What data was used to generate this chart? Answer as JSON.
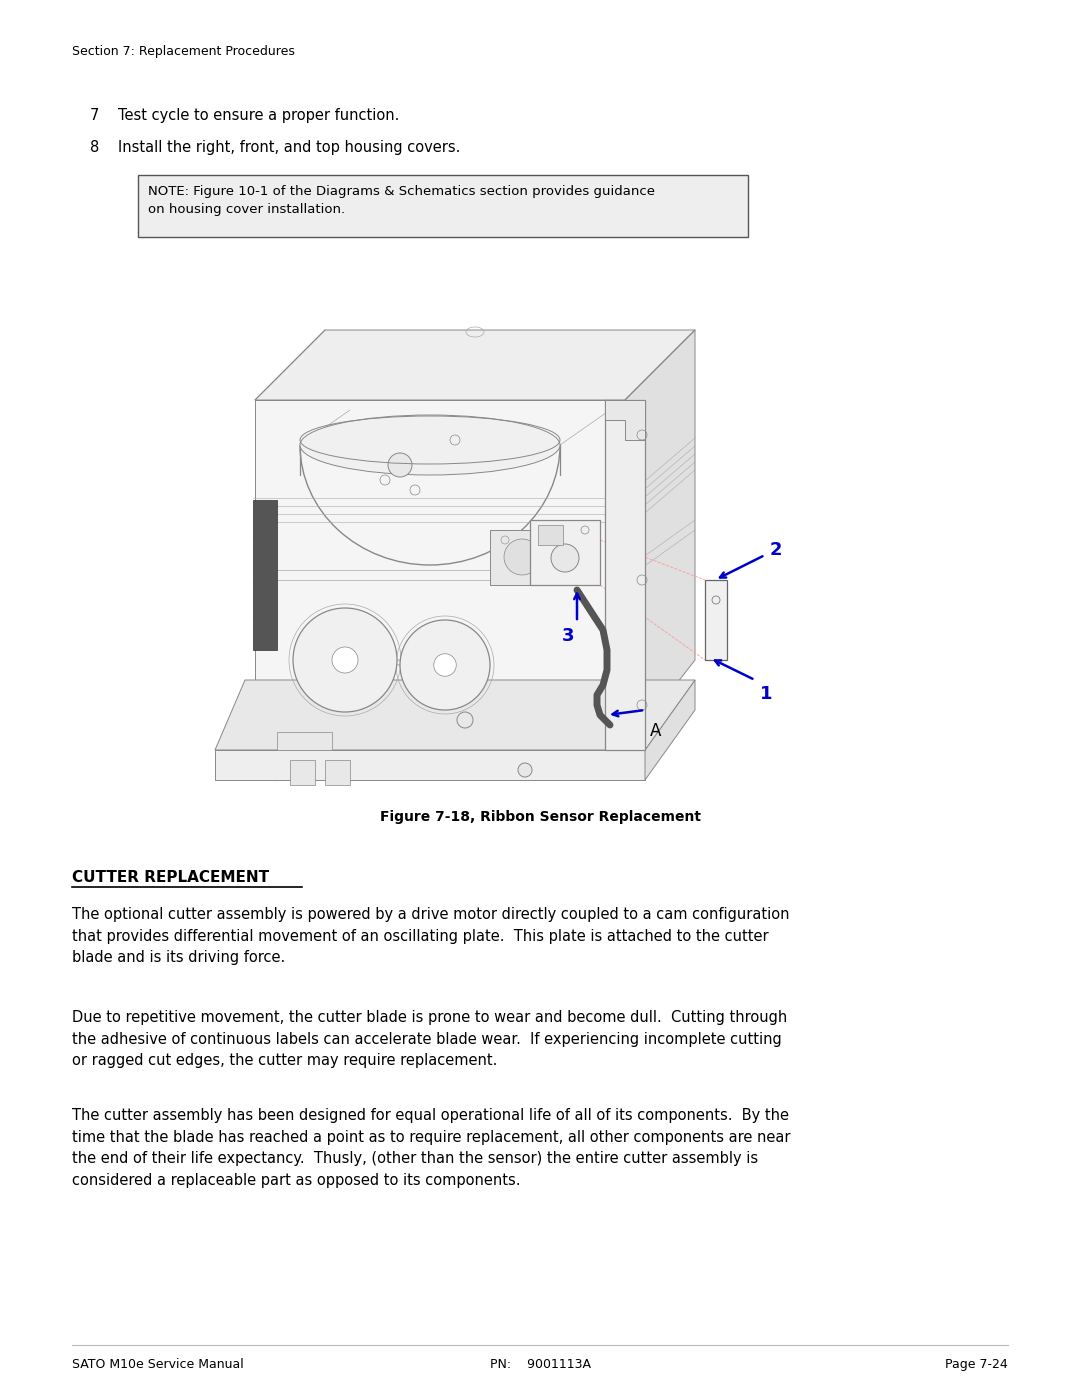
{
  "page_width": 10.8,
  "page_height": 13.97,
  "dpi": 100,
  "bg_color": "#ffffff",
  "header_text": "Section 7: Replacement Procedures",
  "header_fontsize": 9,
  "step7_text": "Test cycle to ensure a proper function.",
  "step8_text": "Install the right, front, and top housing covers.",
  "step_fontsize": 10.5,
  "note_text": "NOTE: Figure 10-1 of the Diagrams & Schematics section provides guidance\non housing cover installation.",
  "note_fontsize": 9.5,
  "figure_caption": "Figure 7-18, Ribbon Sensor Replacement",
  "figure_caption_fontsize": 10,
  "section_title": "CUTTER REPLACEMENT",
  "section_title_fontsize": 11,
  "para1": "The optional cutter assembly is powered by a drive motor directly coupled to a cam configuration\nthat provides differential movement of an oscillating plate.  This plate is attached to the cutter\nblade and is its driving force.",
  "para1_fontsize": 10.5,
  "para2": "Due to repetitive movement, the cutter blade is prone to wear and become dull.  Cutting through\nthe adhesive of continuous labels can accelerate blade wear.  If experiencing incomplete cutting\nor ragged cut edges, the cutter may require replacement.",
  "para2_fontsize": 10.5,
  "para3": "The cutter assembly has been designed for equal operational life of all of its components.  By the\ntime that the blade has reached a point as to require replacement, all other components are near\nthe end of their life expectancy.  Thusly, (other than the sensor) the entire cutter assembly is\nconsidered a replaceable part as opposed to its components.",
  "para3_fontsize": 10.5,
  "footer_left": "SATO M10e Service Manual",
  "footer_center": "PN:    9001113A",
  "footer_right": "Page 7-24",
  "footer_fontsize": 9,
  "text_color": "#000000",
  "line_color": "#bbbbbb",
  "blue_color": "#0000cc",
  "draw_color": "#888888",
  "draw_lw": 0.7
}
